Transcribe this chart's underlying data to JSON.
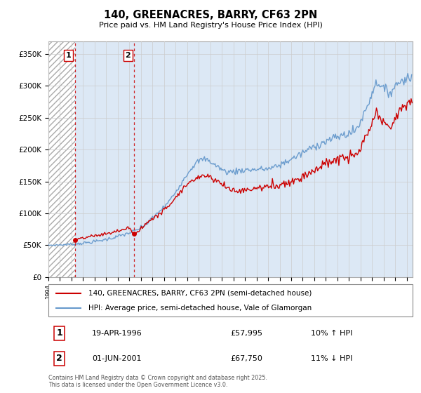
{
  "title": "140, GREENACRES, BARRY, CF63 2PN",
  "subtitle": "Price paid vs. HM Land Registry's House Price Index (HPI)",
  "ylabel_ticks": [
    "£0",
    "£50K",
    "£100K",
    "£150K",
    "£200K",
    "£250K",
    "£300K",
    "£350K"
  ],
  "ylim": [
    0,
    370000
  ],
  "xlim_start": 1994.0,
  "xlim_end": 2025.5,
  "hatch_end_year": 1996.29,
  "sale1_year": 1996.29,
  "sale1_price": 57995,
  "sale1_date": "19-APR-1996",
  "sale1_hpi": "10% ↑ HPI",
  "sale2_year": 2001.42,
  "sale2_price": 67750,
  "sale2_date": "01-JUN-2001",
  "sale2_hpi": "11% ↓ HPI",
  "legend_property": "140, GREENACRES, BARRY, CF63 2PN (semi-detached house)",
  "legend_hpi": "HPI: Average price, semi-detached house, Vale of Glamorgan",
  "footer": "Contains HM Land Registry data © Crown copyright and database right 2025.\nThis data is licensed under the Open Government Licence v3.0.",
  "property_color": "#cc0000",
  "hpi_color": "#6699cc",
  "background_color": "#dce8f5",
  "hatch_facecolor": "#ffffff",
  "hatch_edgecolor": "#aaaaaa",
  "grid_color": "#cccccc",
  "sale_band_color": "#dce8f5"
}
